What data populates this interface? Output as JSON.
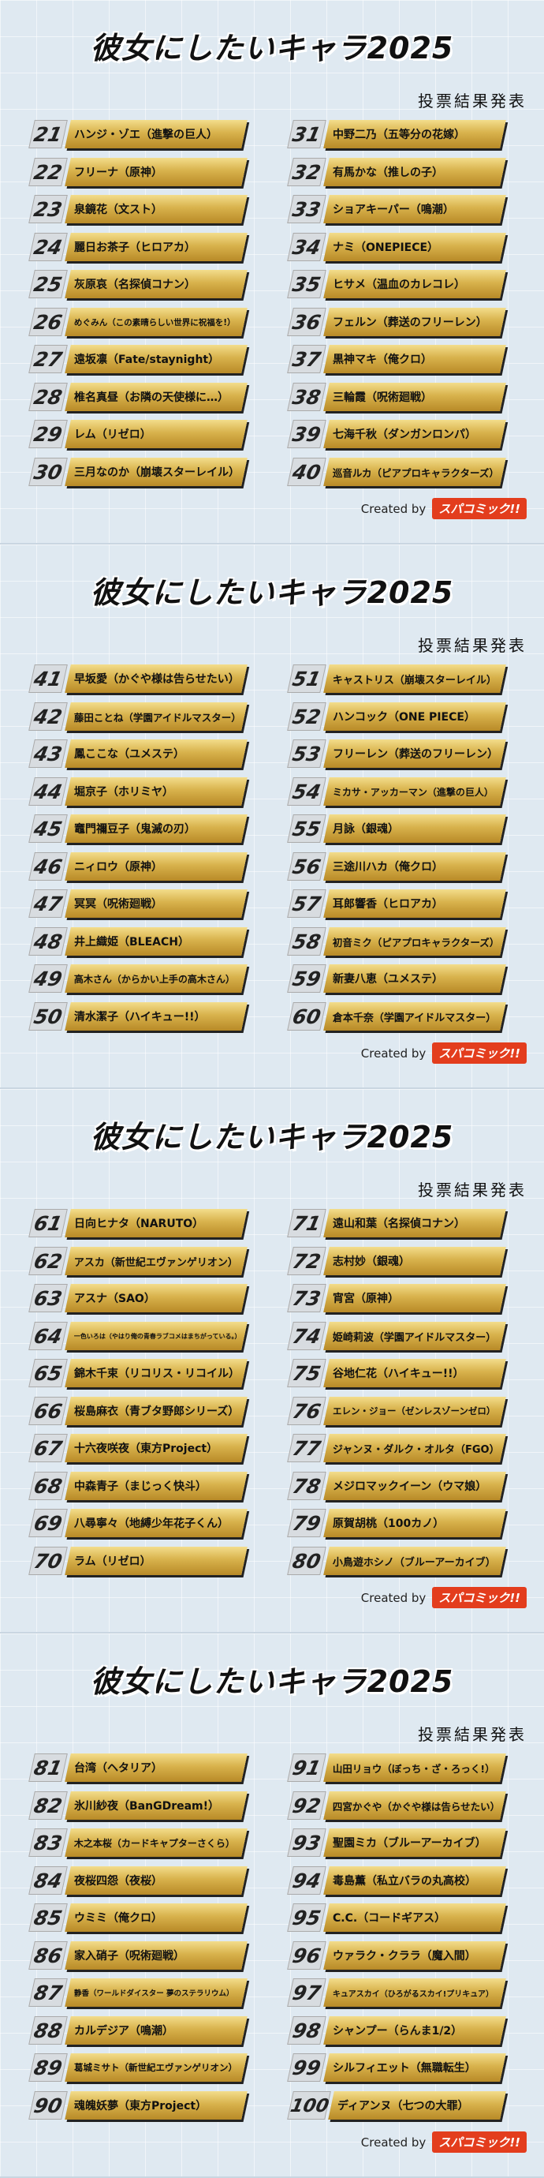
{
  "title": "彼女にしたいキャラ2025",
  "subtitle": "投票結果発表",
  "credit": {
    "text": "Created by",
    "logo": "スパコミック!!"
  },
  "panels": [
    {
      "left": [
        {
          "n": "21",
          "name": "ハンジ・ゾエ（進撃の巨人）"
        },
        {
          "n": "22",
          "name": "フリーナ（原神）"
        },
        {
          "n": "23",
          "name": "泉鏡花（文スト）"
        },
        {
          "n": "24",
          "name": "麗日お茶子（ヒロアカ）"
        },
        {
          "n": "25",
          "name": "灰原哀（名探偵コナン）"
        },
        {
          "n": "26",
          "name": "めぐみん（この素晴らしい世界に祝福を!）"
        },
        {
          "n": "27",
          "name": "遠坂凛（Fate/staynight）"
        },
        {
          "n": "28",
          "name": "椎名真昼（お隣の天使様に…）"
        },
        {
          "n": "29",
          "name": "レム（リゼロ）"
        },
        {
          "n": "30",
          "name": "三月なのか（崩壊スターレイル）"
        }
      ],
      "right": [
        {
          "n": "31",
          "name": "中野二乃（五等分の花嫁）"
        },
        {
          "n": "32",
          "name": "有馬かな（推しの子）"
        },
        {
          "n": "33",
          "name": "ショアキーパー（鳴潮）"
        },
        {
          "n": "34",
          "name": "ナミ（ONEPIECE）"
        },
        {
          "n": "35",
          "name": "ヒサメ（温血のカレコレ）"
        },
        {
          "n": "36",
          "name": "フェルン（葬送のフリーレン）"
        },
        {
          "n": "37",
          "name": "黒神マキ（俺クロ）"
        },
        {
          "n": "38",
          "name": "三輪霞（呪術廻戦）"
        },
        {
          "n": "39",
          "name": "七海千秋（ダンガンロンパ）"
        },
        {
          "n": "40",
          "name": "巡音ルカ（ピアプロキャラクターズ）"
        }
      ]
    },
    {
      "left": [
        {
          "n": "41",
          "name": "早坂愛（かぐや様は告らせたい）"
        },
        {
          "n": "42",
          "name": "藤田ことね（学園アイドルマスター）"
        },
        {
          "n": "43",
          "name": "鳳ここな（ユメステ）"
        },
        {
          "n": "44",
          "name": "堀京子（ホリミヤ）"
        },
        {
          "n": "45",
          "name": "竈門禰豆子（鬼滅の刃）"
        },
        {
          "n": "46",
          "name": "ニィロウ（原神）"
        },
        {
          "n": "47",
          "name": "冥冥（呪術廻戦）"
        },
        {
          "n": "48",
          "name": "井上織姫（BLEACH）"
        },
        {
          "n": "49",
          "name": "高木さん（からかい上手の高木さん）"
        },
        {
          "n": "50",
          "name": "清水潔子（ハイキュー!!）"
        }
      ],
      "right": [
        {
          "n": "51",
          "name": "キャストリス（崩壊スターレイル）"
        },
        {
          "n": "52",
          "name": "ハンコック（ONE PIECE）"
        },
        {
          "n": "53",
          "name": "フリーレン（葬送のフリーレン）"
        },
        {
          "n": "54",
          "name": "ミカサ・アッカーマン（進撃の巨人）"
        },
        {
          "n": "55",
          "name": "月詠（銀魂）"
        },
        {
          "n": "56",
          "name": "三途川ハカ（俺クロ）"
        },
        {
          "n": "57",
          "name": "耳郎響香（ヒロアカ）"
        },
        {
          "n": "58",
          "name": "初音ミク（ピアプロキャラクターズ）"
        },
        {
          "n": "59",
          "name": "新妻八恵（ユメステ）"
        },
        {
          "n": "60",
          "name": "倉本千奈（学園アイドルマスター）"
        }
      ]
    },
    {
      "left": [
        {
          "n": "61",
          "name": "日向ヒナタ（NARUTO）"
        },
        {
          "n": "62",
          "name": "アスカ（新世紀エヴァンゲリオン）"
        },
        {
          "n": "63",
          "name": "アスナ（SAO）"
        },
        {
          "n": "64",
          "name": "一色いろは（やはり俺の青春ラブコメはまちがっている。）"
        },
        {
          "n": "65",
          "name": "錦木千束（リコリス・リコイル）"
        },
        {
          "n": "66",
          "name": "桜島麻衣（青ブタ野郎シリーズ）"
        },
        {
          "n": "67",
          "name": "十六夜咲夜（東方Project）"
        },
        {
          "n": "68",
          "name": "中森青子（まじっく快斗）"
        },
        {
          "n": "69",
          "name": "八尋寧々（地縛少年花子くん）"
        },
        {
          "n": "70",
          "name": "ラム（リゼロ）"
        }
      ],
      "right": [
        {
          "n": "71",
          "name": "遠山和葉（名探偵コナン）"
        },
        {
          "n": "72",
          "name": "志村妙（銀魂）"
        },
        {
          "n": "73",
          "name": "宵宮（原神）"
        },
        {
          "n": "74",
          "name": "姫崎莉波（学園アイドルマスター）"
        },
        {
          "n": "75",
          "name": "谷地仁花（ハイキュー!!）"
        },
        {
          "n": "76",
          "name": "エレン・ジョー（ゼンレスゾーンゼロ）"
        },
        {
          "n": "77",
          "name": "ジャンヌ・ダルク・オルタ（FGO）"
        },
        {
          "n": "78",
          "name": "メジロマックイーン（ウマ娘）"
        },
        {
          "n": "79",
          "name": "原賀胡桃（100カノ）"
        },
        {
          "n": "80",
          "name": "小鳥遊ホシノ（ブルーアーカイブ）"
        }
      ]
    },
    {
      "left": [
        {
          "n": "81",
          "name": "台湾（ヘタリア）"
        },
        {
          "n": "82",
          "name": "氷川紗夜（BanGDream!）"
        },
        {
          "n": "83",
          "name": "木之本桜（カードキャプターさくら）"
        },
        {
          "n": "84",
          "name": "夜桜四怨（夜桜）"
        },
        {
          "n": "85",
          "name": "ウミミ（俺クロ）"
        },
        {
          "n": "86",
          "name": "家入硝子（呪術廻戦）"
        },
        {
          "n": "87",
          "name": "静香（ワールドダイスター 夢のステラリウム）"
        },
        {
          "n": "88",
          "name": "カルデジア（鳴潮）"
        },
        {
          "n": "89",
          "name": "葛城ミサト（新世紀エヴァンゲリオン）"
        },
        {
          "n": "90",
          "name": "魂魄妖夢（東方Project）"
        }
      ],
      "right": [
        {
          "n": "91",
          "name": "山田リョウ（ぼっち・ざ・ろっく!）"
        },
        {
          "n": "92",
          "name": "四宮かぐや（かぐや様は告らせたい）"
        },
        {
          "n": "93",
          "name": "聖園ミカ（ブルーアーカイブ）"
        },
        {
          "n": "94",
          "name": "毒島薫（私立バラの丸高校）"
        },
        {
          "n": "95",
          "name": "C.C.（コードギアス）"
        },
        {
          "n": "96",
          "name": "ウァラク・クララ（魔入間）"
        },
        {
          "n": "97",
          "name": "キュアスカイ（ひろがるスカイ!プリキュア）"
        },
        {
          "n": "98",
          "name": "シャンプー（らんま1/2）"
        },
        {
          "n": "99",
          "name": "シルフィエット（無職転生）"
        },
        {
          "n": "100",
          "name": "ディアンヌ（七つの大罪）"
        }
      ]
    }
  ]
}
